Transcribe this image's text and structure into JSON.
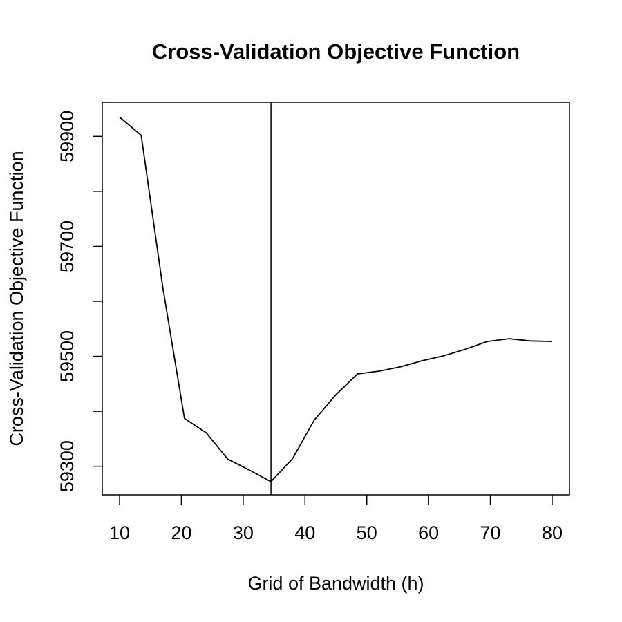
{
  "chart_data": {
    "type": "line",
    "title": "Cross-Validation Objective Function",
    "xlabel": "Grid of Bandwidth (h)",
    "ylabel": "Cross-Validation Objective Function",
    "x_ticks": [
      10,
      20,
      30,
      40,
      50,
      60,
      70,
      80
    ],
    "y_ticks": [
      59300,
      59500,
      59700,
      59900
    ],
    "y_minor_ticks": [
      59400,
      59600,
      59800
    ],
    "xlim": [
      7.2,
      82.8
    ],
    "ylim": [
      59248,
      59962
    ],
    "grid": false,
    "legend": "none",
    "vline_x": 34.5,
    "series": [
      {
        "x": [
          10,
          13.5,
          17,
          20.5,
          24,
          27.5,
          31,
          34.5,
          38,
          41.5,
          45,
          48.5,
          52,
          55.5,
          59,
          62.5,
          66,
          69.5,
          73,
          76.5,
          80
        ],
        "y": [
          59935,
          59902,
          59625,
          59387,
          59361,
          59313,
          59293,
          59272,
          59314,
          59384,
          59430,
          59468,
          59473,
          59481,
          59492,
          59501,
          59513,
          59527,
          59532,
          59528,
          59527
        ]
      }
    ]
  }
}
